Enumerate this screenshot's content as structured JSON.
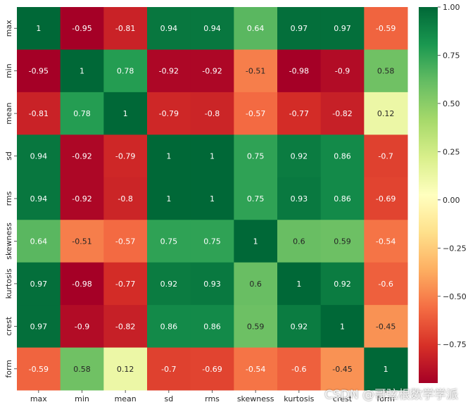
{
  "chart_data": {
    "type": "heatmap",
    "title": "",
    "colormap": "RdYlGn",
    "vmin": -0.95,
    "vmax": 1.0,
    "x_labels": [
      "max",
      "min",
      "mean",
      "sd",
      "rms",
      "skewness",
      "kurtosis",
      "crest",
      "form"
    ],
    "y_labels": [
      "max",
      "min",
      "mean",
      "sd",
      "rms",
      "skewness",
      "kurtosis",
      "crest",
      "form"
    ],
    "values": [
      [
        1,
        -0.95,
        -0.81,
        0.94,
        0.94,
        0.64,
        0.97,
        0.97,
        -0.59
      ],
      [
        -0.95,
        1,
        0.78,
        -0.92,
        -0.92,
        -0.51,
        -0.98,
        -0.9,
        0.58
      ],
      [
        -0.81,
        0.78,
        1,
        -0.79,
        -0.8,
        -0.57,
        -0.77,
        -0.82,
        0.12
      ],
      [
        0.94,
        -0.92,
        -0.79,
        1,
        1,
        0.75,
        0.92,
        0.86,
        -0.7
      ],
      [
        0.94,
        -0.92,
        -0.8,
        1,
        1,
        0.75,
        0.93,
        0.86,
        -0.69
      ],
      [
        0.64,
        -0.51,
        -0.57,
        0.75,
        0.75,
        1,
        0.6,
        0.59,
        -0.54
      ],
      [
        0.97,
        -0.98,
        -0.77,
        0.92,
        0.93,
        0.6,
        1,
        0.92,
        -0.6
      ],
      [
        0.97,
        -0.9,
        -0.82,
        0.86,
        0.86,
        0.59,
        0.92,
        1,
        -0.45
      ],
      [
        -0.59,
        0.58,
        0.12,
        -0.7,
        -0.69,
        -0.54,
        -0.6,
        -0.45,
        1
      ]
    ],
    "colorbar": {
      "ticks": [
        1.0,
        0.75,
        0.5,
        0.25,
        0.0,
        -0.25,
        -0.5,
        -0.75
      ],
      "tick_labels": [
        "1.00",
        "0.75",
        "0.50",
        "0.25",
        "0.00",
        "−0.25",
        "−0.50",
        "−0.75"
      ]
    }
  },
  "watermark": "CSDN @哥弦根数学学派"
}
